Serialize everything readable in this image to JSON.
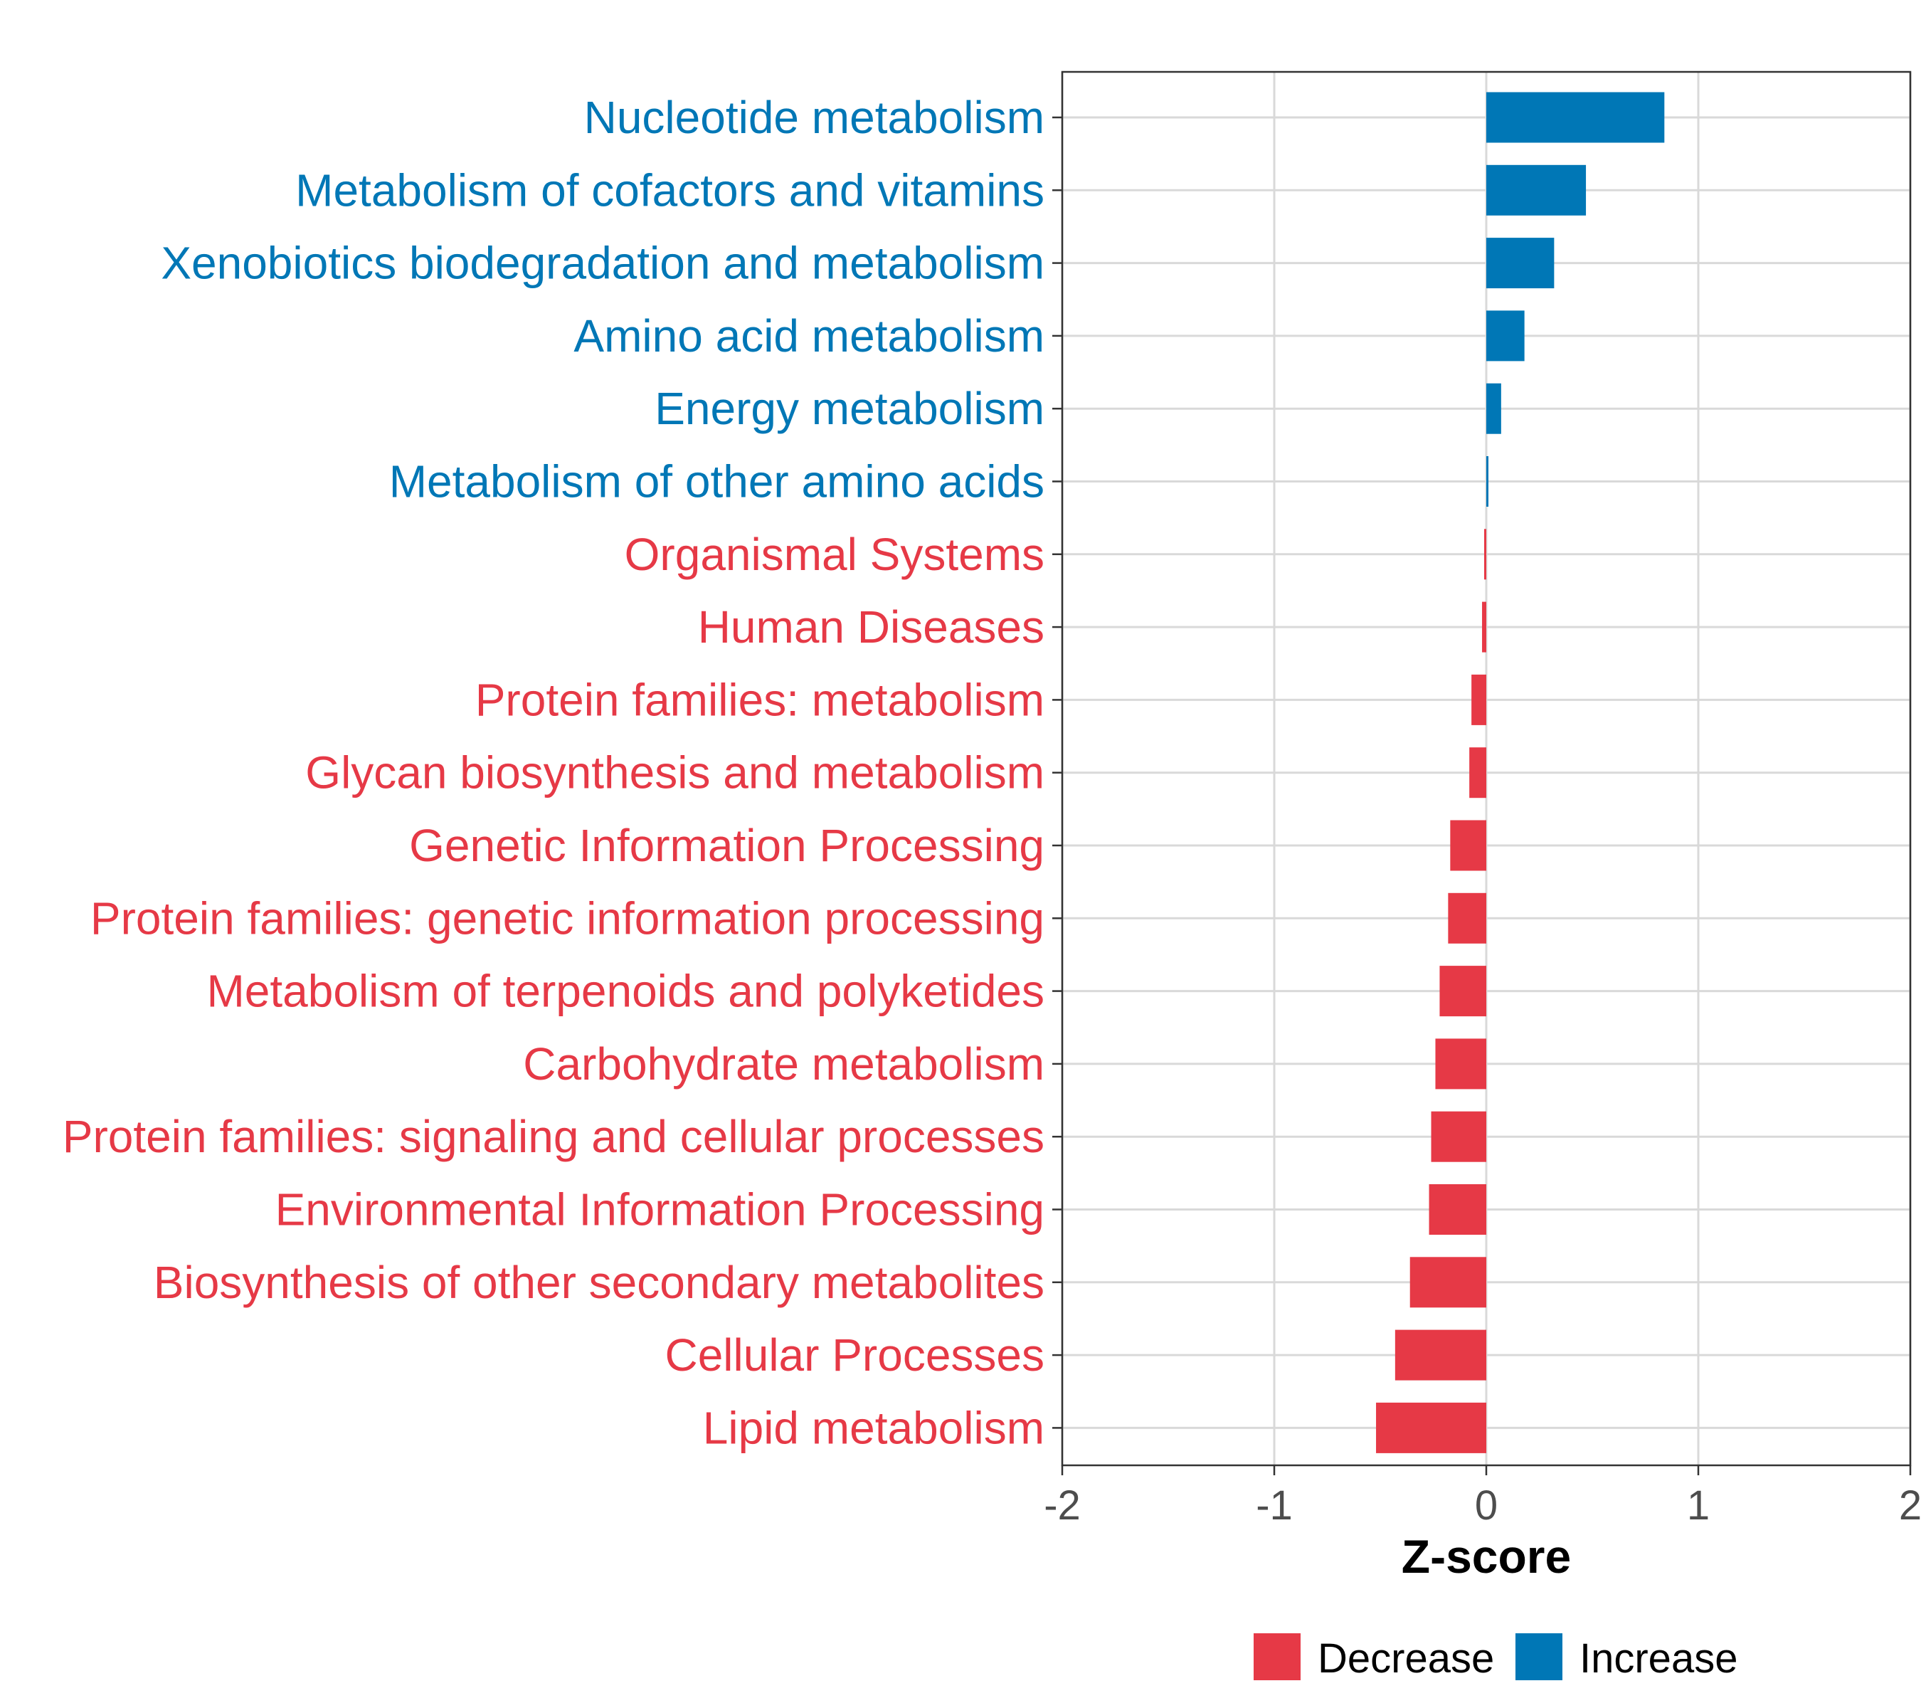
{
  "chart_data": {
    "type": "bar",
    "orientation": "horizontal",
    "title": "",
    "xlabel": "Z-score",
    "ylabel": "",
    "xlim": [
      -2,
      2
    ],
    "xticks": [
      -2,
      -1,
      0,
      1,
      2
    ],
    "xtick_labels": [
      "-2",
      "-1",
      "0",
      "1",
      "2"
    ],
    "grid": true,
    "legend_position": "bottom",
    "colors": {
      "Decrease": "#E63946",
      "Increase": "#0077B6"
    },
    "categories": [
      "Nucleotide metabolism",
      "Metabolism of cofactors and vitamins",
      "Xenobiotics biodegradation and metabolism",
      "Amino acid metabolism",
      "Energy metabolism",
      "Metabolism of other amino acids",
      "Organismal Systems",
      "Human Diseases",
      "Protein families: metabolism",
      "Glycan biosynthesis and metabolism",
      "Genetic Information Processing",
      "Protein families: genetic information processing",
      "Metabolism of terpenoids and polyketides",
      "Carbohydrate metabolism",
      "Protein families: signaling and cellular processes",
      "Environmental Information Processing",
      "Biosynthesis of other secondary metabolites",
      "Cellular Processes",
      "Lipid metabolism"
    ],
    "values": [
      0.84,
      0.47,
      0.32,
      0.18,
      0.07,
      0.01,
      -0.01,
      -0.02,
      -0.07,
      -0.08,
      -0.17,
      -0.18,
      -0.22,
      -0.24,
      -0.26,
      -0.27,
      -0.36,
      -0.43,
      -0.52
    ],
    "groups": [
      "Increase",
      "Increase",
      "Increase",
      "Increase",
      "Increase",
      "Increase",
      "Decrease",
      "Decrease",
      "Decrease",
      "Decrease",
      "Decrease",
      "Decrease",
      "Decrease",
      "Decrease",
      "Decrease",
      "Decrease",
      "Decrease",
      "Decrease",
      "Decrease"
    ],
    "legend": [
      {
        "label": "Decrease",
        "color": "#E63946"
      },
      {
        "label": "Increase",
        "color": "#0077B6"
      }
    ]
  }
}
